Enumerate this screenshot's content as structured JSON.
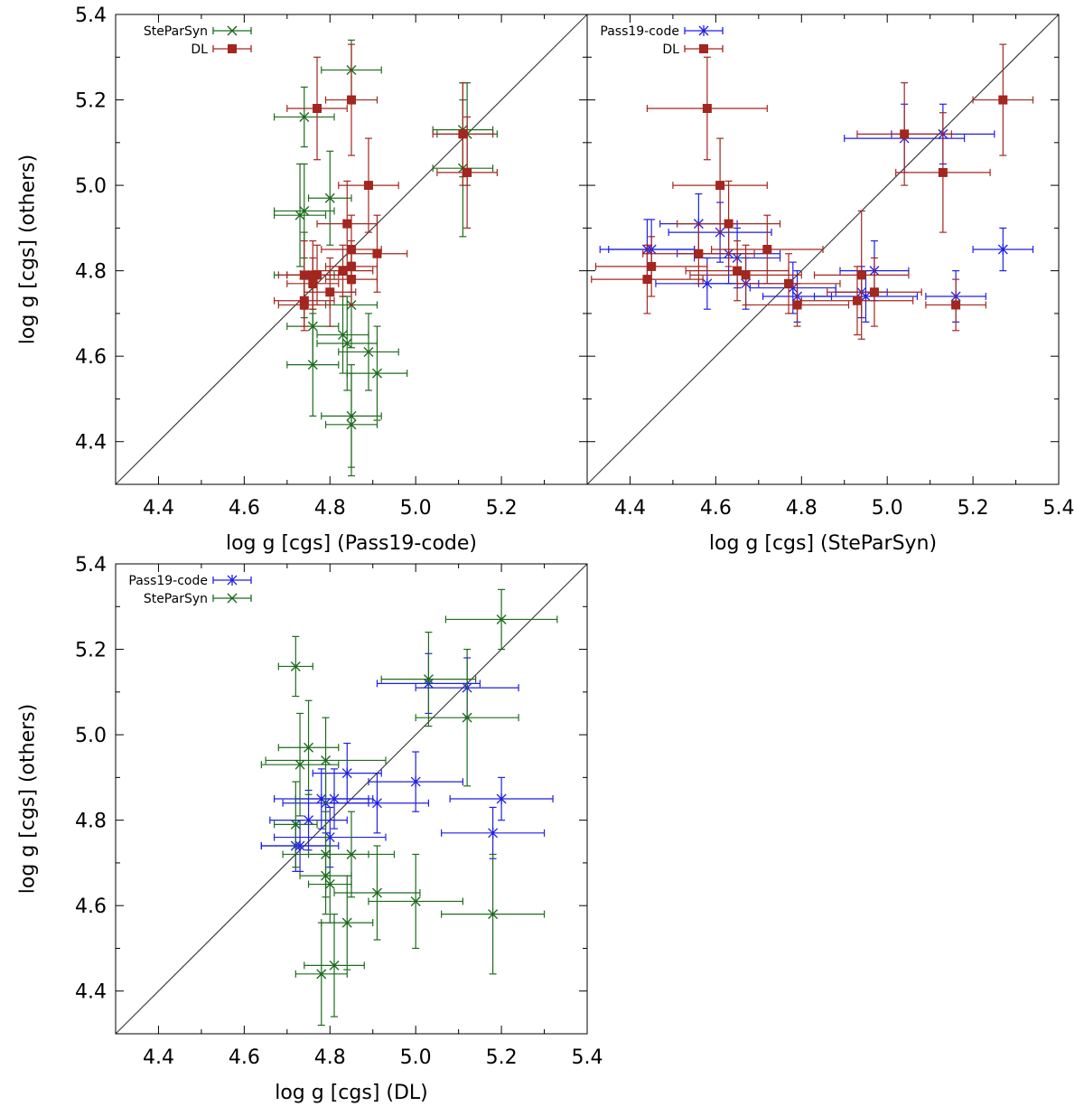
{
  "colors": {
    "Pass19-code": "#1f1fe6",
    "SteParSyn": "#1e6b1e",
    "DL": "#a3261f",
    "identity": "#404040",
    "frame": "#000000"
  },
  "chart_data": [
    {
      "type": "scatter",
      "id": "panel-a",
      "xlabel": "log g [cgs] (Pass19-code)",
      "ylabel": "log g [cgs] (others)",
      "xlim": [
        4.3,
        5.4
      ],
      "ylim": [
        4.3,
        5.4
      ],
      "xticks": [
        "4.4",
        "4.6",
        "4.8",
        "5.0",
        "5.2"
      ],
      "yticks": [
        "4.4",
        "4.6",
        "4.8",
        "5.0",
        "5.2",
        "5.4"
      ],
      "identity_line": true,
      "series": [
        {
          "name": "SteParSyn",
          "marker": "x",
          "points": [
            [
              4.74,
              5.16,
              0.07,
              0.07
            ],
            [
              4.85,
              5.27,
              0.07,
              0.07
            ],
            [
              4.8,
              4.97,
              0.05,
              0.11
            ],
            [
              4.74,
              4.94,
              0.07,
              0.11
            ],
            [
              4.73,
              4.93,
              0.06,
              0.12
            ],
            [
              4.74,
              4.79,
              0.07,
              0.1
            ],
            [
              4.76,
              4.67,
              0.06,
              0.09
            ],
            [
              4.76,
              4.58,
              0.06,
              0.12
            ],
            [
              4.83,
              4.65,
              0.06,
              0.09
            ],
            [
              4.84,
              4.63,
              0.07,
              0.11
            ],
            [
              4.85,
              4.72,
              0.06,
              0.1
            ],
            [
              4.89,
              4.61,
              0.07,
              0.09
            ],
            [
              4.91,
              4.56,
              0.07,
              0.11
            ],
            [
              4.85,
              4.46,
              0.07,
              0.12
            ],
            [
              4.85,
              4.44,
              0.06,
              0.12
            ],
            [
              5.11,
              5.13,
              0.07,
              0.11
            ],
            [
              5.11,
              5.04,
              0.07,
              0.16
            ],
            [
              5.12,
              5.12,
              0.07,
              0.12
            ]
          ]
        },
        {
          "name": "DL",
          "marker": "square",
          "points": [
            [
              4.77,
              5.18,
              0.07,
              0.12
            ],
            [
              4.85,
              5.2,
              0.06,
              0.13
            ],
            [
              4.89,
              5.0,
              0.07,
              0.11
            ],
            [
              4.84,
              4.91,
              0.07,
              0.1
            ],
            [
              4.85,
              4.85,
              0.07,
              0.08
            ],
            [
              4.85,
              4.81,
              0.06,
              0.06
            ],
            [
              4.91,
              4.84,
              0.07,
              0.09
            ],
            [
              4.83,
              4.8,
              0.07,
              0.06
            ],
            [
              4.76,
              4.79,
              0.06,
              0.08
            ],
            [
              4.77,
              4.79,
              0.07,
              0.07
            ],
            [
              4.74,
              4.79,
              0.06,
              0.08
            ],
            [
              4.76,
              4.77,
              0.06,
              0.06
            ],
            [
              4.8,
              4.75,
              0.06,
              0.08
            ],
            [
              4.85,
              4.78,
              0.06,
              0.06
            ],
            [
              4.74,
              4.73,
              0.07,
              0.06
            ],
            [
              4.74,
              4.72,
              0.06,
              0.06
            ],
            [
              5.11,
              5.12,
              0.07,
              0.12
            ],
            [
              5.12,
              5.03,
              0.07,
              0.13
            ]
          ]
        }
      ]
    },
    {
      "type": "scatter",
      "id": "panel-b",
      "xlabel": "log g [cgs] (SteParSyn)",
      "ylabel": "",
      "xlim": [
        4.3,
        5.4
      ],
      "ylim": [
        4.3,
        5.4
      ],
      "xticks": [
        "4.4",
        "4.6",
        "4.8",
        "5.0",
        "5.2",
        "5.4"
      ],
      "yticks": [],
      "identity_line": true,
      "series": [
        {
          "name": "Pass19-code",
          "marker": "asterisk",
          "points": [
            [
              4.44,
              4.85,
              0.11,
              0.07
            ],
            [
              4.45,
              4.85,
              0.1,
              0.07
            ],
            [
              4.56,
              4.91,
              0.09,
              0.07
            ],
            [
              4.61,
              4.89,
              0.12,
              0.07
            ],
            [
              4.63,
              4.84,
              0.12,
              0.07
            ],
            [
              4.65,
              4.83,
              0.1,
              0.07
            ],
            [
              4.58,
              4.77,
              0.12,
              0.06
            ],
            [
              4.67,
              4.77,
              0.11,
              0.06
            ],
            [
              4.78,
              4.76,
              0.1,
              0.06
            ],
            [
              4.79,
              4.74,
              0.08,
              0.06
            ],
            [
              4.94,
              4.75,
              0.06,
              0.06
            ],
            [
              4.97,
              4.8,
              0.08,
              0.07
            ],
            [
              4.95,
              4.74,
              0.12,
              0.06
            ],
            [
              5.04,
              5.11,
              0.14,
              0.08
            ],
            [
              5.13,
              5.12,
              0.12,
              0.07
            ],
            [
              5.16,
              4.74,
              0.07,
              0.06
            ],
            [
              5.27,
              4.85,
              0.07,
              0.05
            ]
          ]
        },
        {
          "name": "DL",
          "marker": "square",
          "points": [
            [
              4.58,
              5.18,
              0.14,
              0.12
            ],
            [
              4.61,
              5.0,
              0.11,
              0.11
            ],
            [
              4.63,
              4.91,
              0.12,
              0.1
            ],
            [
              4.72,
              4.85,
              0.13,
              0.08
            ],
            [
              4.56,
              4.84,
              0.13,
              0.07
            ],
            [
              4.45,
              4.81,
              0.13,
              0.07
            ],
            [
              4.65,
              4.8,
              0.12,
              0.07
            ],
            [
              4.67,
              4.79,
              0.13,
              0.07
            ],
            [
              4.44,
              4.78,
              0.13,
              0.08
            ],
            [
              4.77,
              4.77,
              0.12,
              0.07
            ],
            [
              4.79,
              4.72,
              0.12,
              0.05
            ],
            [
              4.93,
              4.73,
              0.13,
              0.08
            ],
            [
              4.97,
              4.75,
              0.11,
              0.08
            ],
            [
              4.94,
              4.79,
              0.11,
              0.15
            ],
            [
              5.04,
              5.12,
              0.11,
              0.12
            ],
            [
              5.13,
              5.03,
              0.11,
              0.14
            ],
            [
              5.16,
              4.72,
              0.07,
              0.06
            ],
            [
              5.27,
              5.2,
              0.07,
              0.13
            ]
          ]
        }
      ]
    },
    {
      "type": "scatter",
      "id": "panel-c",
      "xlabel": "log g [cgs] (DL)",
      "ylabel": "log g [cgs] (others)",
      "xlim": [
        4.3,
        5.4
      ],
      "ylim": [
        4.3,
        5.4
      ],
      "xticks": [
        "4.4",
        "4.6",
        "4.8",
        "5.0",
        "5.2",
        "5.4"
      ],
      "yticks": [
        "4.4",
        "4.6",
        "4.8",
        "5.0",
        "5.2",
        "5.4"
      ],
      "identity_line": true,
      "series": [
        {
          "name": "Pass19-code",
          "marker": "asterisk",
          "points": [
            [
              4.84,
              4.91,
              0.08,
              0.07
            ],
            [
              4.81,
              4.85,
              0.09,
              0.07
            ],
            [
              4.79,
              4.84,
              0.1,
              0.07
            ],
            [
              4.78,
              4.85,
              0.11,
              0.07
            ],
            [
              4.91,
              4.84,
              0.12,
              0.07
            ],
            [
              5.0,
              4.89,
              0.11,
              0.07
            ],
            [
              4.75,
              4.8,
              0.09,
              0.07
            ],
            [
              4.8,
              4.76,
              0.13,
              0.07
            ],
            [
              4.72,
              4.74,
              0.08,
              0.06
            ],
            [
              4.73,
              4.74,
              0.09,
              0.06
            ],
            [
              5.03,
              5.12,
              0.12,
              0.07
            ],
            [
              5.12,
              5.11,
              0.12,
              0.07
            ],
            [
              5.2,
              4.85,
              0.12,
              0.05
            ],
            [
              5.18,
              4.77,
              0.12,
              0.06
            ]
          ]
        },
        {
          "name": "SteParSyn",
          "marker": "x",
          "points": [
            [
              4.72,
              5.16,
              0.04,
              0.07
            ],
            [
              5.2,
              5.27,
              0.13,
              0.07
            ],
            [
              5.03,
              5.13,
              0.11,
              0.11
            ],
            [
              5.12,
              5.04,
              0.12,
              0.16
            ],
            [
              4.75,
              4.97,
              0.07,
              0.11
            ],
            [
              4.79,
              4.94,
              0.14,
              0.1
            ],
            [
              4.73,
              4.93,
              0.09,
              0.12
            ],
            [
              4.72,
              4.79,
              0.05,
              0.1
            ],
            [
              4.79,
              4.72,
              0.1,
              0.1
            ],
            [
              4.85,
              4.72,
              0.1,
              0.1
            ],
            [
              4.79,
              4.67,
              0.06,
              0.09
            ],
            [
              4.8,
              4.65,
              0.05,
              0.09
            ],
            [
              4.91,
              4.63,
              0.1,
              0.11
            ],
            [
              5.0,
              4.61,
              0.11,
              0.11
            ],
            [
              5.18,
              4.58,
              0.12,
              0.14
            ],
            [
              4.84,
              4.56,
              0.06,
              0.11
            ],
            [
              4.81,
              4.46,
              0.07,
              0.12
            ],
            [
              4.78,
              4.44,
              0.06,
              0.12
            ]
          ]
        }
      ]
    }
  ]
}
